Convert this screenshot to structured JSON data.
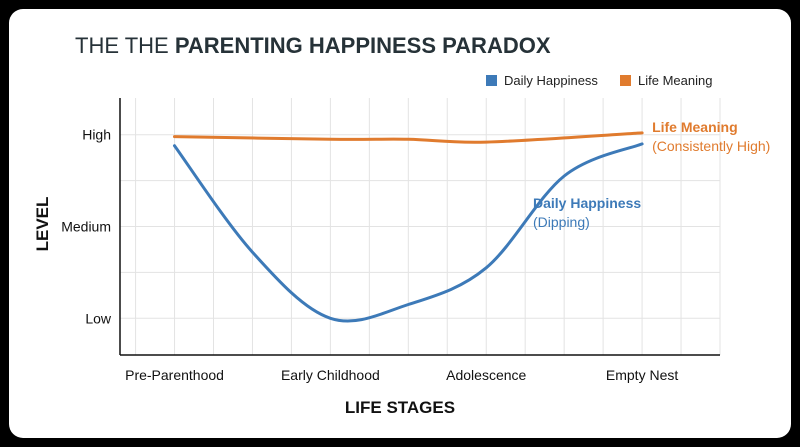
{
  "chart_data": {
    "type": "line",
    "title_prefix": "THE THE ",
    "title_main": "PARENTING HAPPINESS PARADOX",
    "xlabel": "LIFE STAGES",
    "ylabel": "LEVEL",
    "categories": [
      "Pre-Parenthood",
      "Early Childhood",
      "Adolescence",
      "Empty Nest"
    ],
    "y_ticks": [
      "Low",
      "Medium",
      "High"
    ],
    "ylim": [
      0.6,
      3.4
    ],
    "xlim": [
      -0.35,
      3.5
    ],
    "grid": true,
    "legend_position": "top-right",
    "series": [
      {
        "name": "Daily Happiness",
        "color": "#3d7ab8",
        "x": [
          0,
          0.5,
          1,
          1.5,
          2,
          2.5,
          3
        ],
        "values": [
          2.88,
          1.72,
          1.0,
          1.15,
          1.55,
          2.55,
          2.9
        ]
      },
      {
        "name": "Life Meaning",
        "color": "#e07b2e",
        "x": [
          0,
          1,
          1.5,
          2,
          3
        ],
        "values": [
          2.98,
          2.95,
          2.95,
          2.92,
          3.02
        ]
      }
    ],
    "annotations": [
      {
        "series": "Life Meaning",
        "title": "Life Meaning",
        "subtitle": "(Consistently High)"
      },
      {
        "series": "Daily Happiness",
        "title": "Daily Happiness",
        "subtitle": "(Dipping)"
      }
    ]
  }
}
